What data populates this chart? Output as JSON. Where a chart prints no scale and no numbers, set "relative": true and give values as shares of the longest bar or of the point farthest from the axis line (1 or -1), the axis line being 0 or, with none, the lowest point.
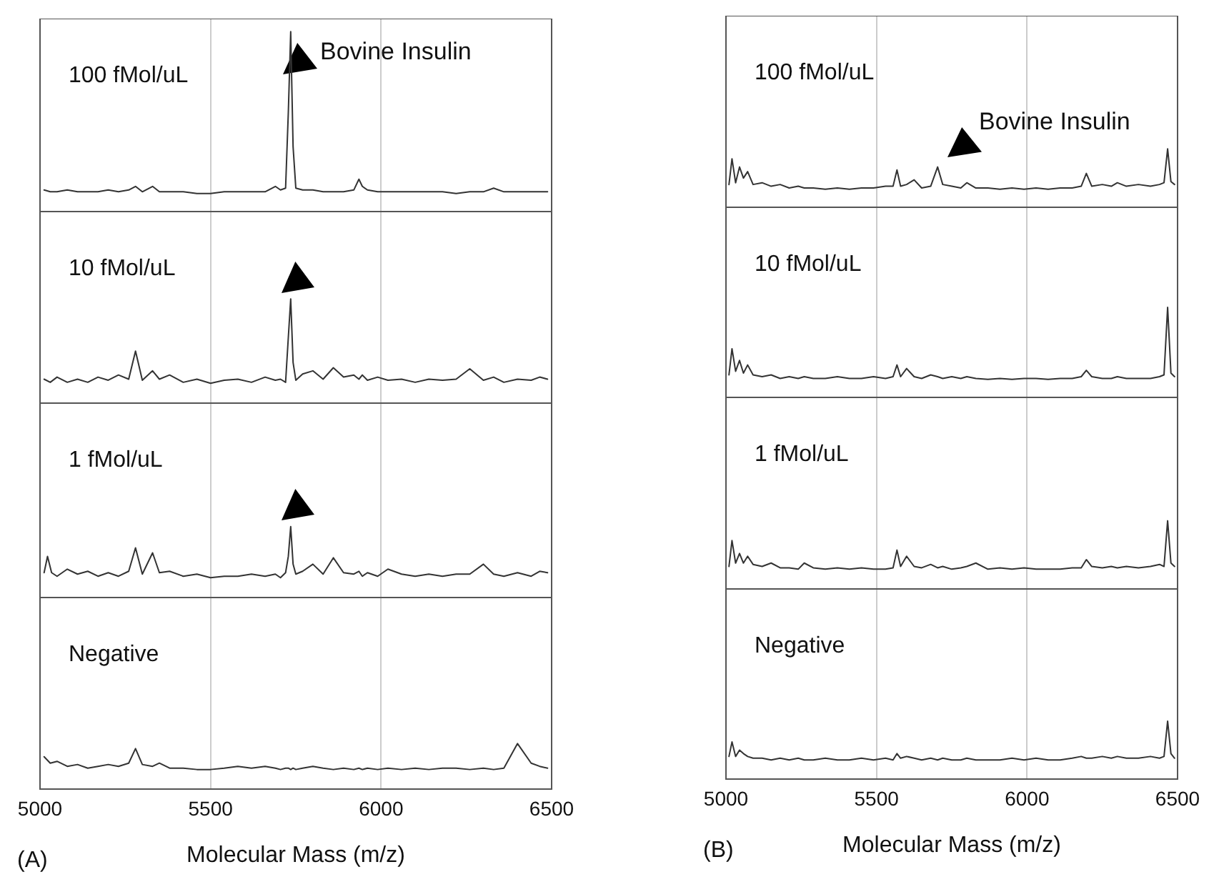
{
  "chart_data": [
    {
      "type": "line",
      "relative": true,
      "color": "#333333",
      "xlim": [
        5000,
        6500
      ],
      "xticks": [
        5000,
        5500,
        6000,
        6500
      ],
      "grid": "x",
      "tick_labels": false,
      "annotations": [
        "100 fMol/uL",
        "Bovine Insulin"
      ],
      "x": [
        5012,
        5030,
        5050,
        5080,
        5110,
        5140,
        5170,
        5200,
        5230,
        5260,
        5280,
        5300,
        5330,
        5350,
        5380,
        5420,
        5460,
        5500,
        5540,
        5580,
        5620,
        5660,
        5690,
        5705,
        5720,
        5728,
        5735,
        5742,
        5750,
        5770,
        5800,
        5830,
        5860,
        5890,
        5920,
        5935,
        5945,
        5960,
        5990,
        6020,
        6060,
        6100,
        6140,
        6180,
        6220,
        6260,
        6300,
        6330,
        6360,
        6400,
        6440,
        6465,
        6488
      ],
      "values": [
        0.12,
        0.11,
        0.11,
        0.12,
        0.11,
        0.11,
        0.11,
        0.12,
        0.11,
        0.12,
        0.14,
        0.11,
        0.14,
        0.11,
        0.11,
        0.11,
        0.1,
        0.1,
        0.11,
        0.11,
        0.11,
        0.11,
        0.14,
        0.12,
        0.13,
        0.55,
        1,
        0.36,
        0.13,
        0.12,
        0.12,
        0.11,
        0.11,
        0.11,
        0.12,
        0.18,
        0.14,
        0.12,
        0.11,
        0.11,
        0.11,
        0.11,
        0.11,
        0.11,
        0.1,
        0.11,
        0.11,
        0.13,
        0.11,
        0.11,
        0.11,
        0.11,
        0.11
      ]
    },
    {
      "type": "line",
      "relative": true,
      "color": "#333333",
      "xlim": [
        5000,
        6500
      ],
      "xticks": [
        5000,
        5500,
        6000,
        6500
      ],
      "grid": "x",
      "tick_labels": false,
      "annotations": [
        "10 fMol/uL"
      ],
      "x": [
        5012,
        5030,
        5050,
        5080,
        5110,
        5140,
        5170,
        5200,
        5230,
        5260,
        5280,
        5300,
        5330,
        5350,
        5380,
        5420,
        5460,
        5500,
        5540,
        5580,
        5620,
        5660,
        5690,
        5705,
        5720,
        5728,
        5735,
        5742,
        5750,
        5770,
        5800,
        5830,
        5860,
        5890,
        5920,
        5935,
        5945,
        5960,
        5990,
        6020,
        6060,
        6100,
        6140,
        6180,
        6220,
        6260,
        6300,
        6330,
        6360,
        6400,
        6440,
        6465,
        6488
      ],
      "values": [
        0.23,
        0.2,
        0.25,
        0.2,
        0.23,
        0.2,
        0.25,
        0.22,
        0.27,
        0.23,
        0.5,
        0.22,
        0.31,
        0.23,
        0.27,
        0.2,
        0.23,
        0.19,
        0.22,
        0.23,
        0.2,
        0.25,
        0.22,
        0.23,
        0.2,
        0.63,
        1,
        0.39,
        0.22,
        0.28,
        0.31,
        0.23,
        0.34,
        0.25,
        0.27,
        0.23,
        0.27,
        0.22,
        0.25,
        0.22,
        0.23,
        0.2,
        0.23,
        0.22,
        0.23,
        0.33,
        0.22,
        0.25,
        0.2,
        0.23,
        0.22,
        0.25,
        0.23
      ]
    },
    {
      "type": "line",
      "relative": true,
      "color": "#333333",
      "xlim": [
        5000,
        6500
      ],
      "xticks": [
        5000,
        5500,
        6000,
        6500
      ],
      "grid": "x",
      "tick_labels": false,
      "annotations": [
        "1 fMol/uL"
      ],
      "x": [
        5012,
        5022,
        5034,
        5050,
        5080,
        5110,
        5140,
        5170,
        5200,
        5230,
        5260,
        5280,
        5300,
        5330,
        5350,
        5380,
        5420,
        5460,
        5500,
        5540,
        5580,
        5620,
        5660,
        5690,
        5705,
        5720,
        5728,
        5735,
        5742,
        5750,
        5770,
        5800,
        5830,
        5860,
        5890,
        5920,
        5935,
        5945,
        5960,
        5990,
        6020,
        6060,
        6100,
        6140,
        6180,
        6220,
        6260,
        6300,
        6330,
        6360,
        6400,
        6440,
        6465,
        6488
      ],
      "values": [
        0.35,
        0.58,
        0.35,
        0.3,
        0.4,
        0.33,
        0.37,
        0.3,
        0.35,
        0.3,
        0.37,
        0.7,
        0.33,
        0.63,
        0.35,
        0.37,
        0.3,
        0.33,
        0.28,
        0.3,
        0.3,
        0.33,
        0.3,
        0.33,
        0.28,
        0.35,
        0.58,
        1,
        0.47,
        0.33,
        0.37,
        0.47,
        0.33,
        0.56,
        0.35,
        0.33,
        0.37,
        0.3,
        0.35,
        0.3,
        0.4,
        0.33,
        0.3,
        0.33,
        0.3,
        0.33,
        0.33,
        0.47,
        0.33,
        0.3,
        0.35,
        0.3,
        0.37,
        0.35
      ]
    },
    {
      "type": "line",
      "relative": true,
      "color": "#333333",
      "xlim": [
        5000,
        6500
      ],
      "xticks": [
        5000,
        5500,
        6000,
        6500
      ],
      "grid": "x",
      "tick_labels": "x",
      "xlabel": "Molecular Mass (m/z)",
      "annotations": [
        "Negative",
        "(A)"
      ],
      "x": [
        5012,
        5030,
        5050,
        5080,
        5110,
        5140,
        5170,
        5200,
        5230,
        5260,
        5280,
        5300,
        5330,
        5350,
        5380,
        5420,
        5460,
        5500,
        5540,
        5580,
        5620,
        5660,
        5690,
        5705,
        5720,
        5728,
        5735,
        5742,
        5750,
        5770,
        5800,
        5830,
        5860,
        5890,
        5920,
        5935,
        5945,
        5960,
        5990,
        6020,
        6060,
        6100,
        6140,
        6180,
        6220,
        6260,
        6300,
        6330,
        6360,
        6400,
        6440,
        6465,
        6488
      ],
      "values": [
        0.71,
        0.57,
        0.61,
        0.5,
        0.54,
        0.46,
        0.5,
        0.54,
        0.5,
        0.57,
        0.89,
        0.54,
        0.5,
        0.57,
        0.46,
        0.46,
        0.43,
        0.43,
        0.46,
        0.5,
        0.46,
        0.5,
        0.46,
        0.43,
        0.46,
        0.46,
        0.43,
        0.46,
        0.43,
        0.46,
        0.5,
        0.46,
        0.43,
        0.46,
        0.43,
        0.46,
        0.43,
        0.46,
        0.43,
        0.46,
        0.43,
        0.46,
        0.43,
        0.46,
        0.46,
        0.43,
        0.46,
        0.43,
        0.46,
        1,
        0.57,
        0.5,
        0.46
      ]
    },
    {
      "type": "line",
      "relative": true,
      "color": "#333333",
      "xlim": [
        5000,
        6500
      ],
      "xticks": [
        5000,
        5500,
        6000,
        6500
      ],
      "grid": "x",
      "tick_labels": false,
      "annotations": [
        "100 fMol/uL",
        "Bovine Insulin"
      ],
      "x": [
        5010,
        5020,
        5032,
        5045,
        5058,
        5072,
        5090,
        5120,
        5150,
        5180,
        5210,
        5240,
        5260,
        5290,
        5330,
        5370,
        5410,
        5450,
        5490,
        5530,
        5555,
        5568,
        5580,
        5600,
        5625,
        5650,
        5680,
        5703,
        5720,
        5750,
        5780,
        5800,
        5830,
        5870,
        5910,
        5950,
        5990,
        6030,
        6070,
        6110,
        6150,
        6180,
        6197,
        6215,
        6250,
        6280,
        6300,
        6330,
        6370,
        6410,
        6440,
        6455,
        6467,
        6478,
        6490
      ],
      "values": [
        0.39,
        0.83,
        0.42,
        0.69,
        0.5,
        0.61,
        0.39,
        0.42,
        0.36,
        0.39,
        0.33,
        0.36,
        0.33,
        0.33,
        0.31,
        0.33,
        0.31,
        0.33,
        0.33,
        0.36,
        0.36,
        0.64,
        0.36,
        0.39,
        0.47,
        0.33,
        0.36,
        0.69,
        0.39,
        0.36,
        0.33,
        0.42,
        0.33,
        0.33,
        0.31,
        0.33,
        0.31,
        0.33,
        0.31,
        0.33,
        0.33,
        0.36,
        0.58,
        0.36,
        0.39,
        0.36,
        0.42,
        0.36,
        0.39,
        0.36,
        0.39,
        0.42,
        1,
        0.44,
        0.39
      ]
    },
    {
      "type": "line",
      "relative": true,
      "color": "#333333",
      "xlim": [
        5000,
        6500
      ],
      "xticks": [
        5000,
        5500,
        6000,
        6500
      ],
      "grid": "x",
      "tick_labels": false,
      "annotations": [
        "10 fMol/uL"
      ],
      "x": [
        5010,
        5020,
        5032,
        5045,
        5058,
        5072,
        5090,
        5120,
        5150,
        5180,
        5210,
        5240,
        5260,
        5290,
        5330,
        5370,
        5410,
        5450,
        5490,
        5530,
        5555,
        5568,
        5580,
        5600,
        5625,
        5650,
        5680,
        5703,
        5720,
        5750,
        5780,
        5800,
        5830,
        5870,
        5910,
        5950,
        5990,
        6030,
        6070,
        6110,
        6150,
        6180,
        6197,
        6215,
        6250,
        6280,
        6300,
        6330,
        6370,
        6410,
        6440,
        6455,
        6467,
        6478,
        6490
      ],
      "values": [
        0.25,
        0.54,
        0.29,
        0.41,
        0.27,
        0.36,
        0.25,
        0.23,
        0.25,
        0.21,
        0.23,
        0.21,
        0.23,
        0.21,
        0.21,
        0.23,
        0.21,
        0.21,
        0.23,
        0.21,
        0.23,
        0.36,
        0.23,
        0.32,
        0.23,
        0.21,
        0.25,
        0.23,
        0.21,
        0.23,
        0.21,
        0.23,
        0.21,
        0.2,
        0.21,
        0.2,
        0.21,
        0.21,
        0.2,
        0.21,
        0.21,
        0.23,
        0.3,
        0.23,
        0.21,
        0.21,
        0.23,
        0.21,
        0.21,
        0.21,
        0.23,
        0.25,
        1,
        0.27,
        0.23
      ]
    },
    {
      "type": "line",
      "relative": true,
      "color": "#333333",
      "xlim": [
        5000,
        6500
      ],
      "xticks": [
        5000,
        5500,
        6000,
        6500
      ],
      "grid": "x",
      "tick_labels": false,
      "annotations": [
        "1 fMol/uL"
      ],
      "x": [
        5010,
        5020,
        5032,
        5045,
        5058,
        5072,
        5090,
        5120,
        5150,
        5180,
        5210,
        5240,
        5260,
        5290,
        5330,
        5370,
        5410,
        5450,
        5490,
        5530,
        5555,
        5568,
        5580,
        5600,
        5625,
        5650,
        5680,
        5703,
        5720,
        5750,
        5780,
        5800,
        5830,
        5870,
        5910,
        5950,
        5990,
        6030,
        6070,
        6110,
        6150,
        6180,
        6197,
        6215,
        6250,
        6280,
        6300,
        6330,
        6370,
        6410,
        6440,
        6455,
        6467,
        6478,
        6490
      ],
      "values": [
        0.33,
        0.71,
        0.38,
        0.52,
        0.38,
        0.48,
        0.36,
        0.33,
        0.38,
        0.31,
        0.31,
        0.29,
        0.38,
        0.31,
        0.29,
        0.31,
        0.29,
        0.31,
        0.29,
        0.29,
        0.31,
        0.57,
        0.33,
        0.48,
        0.33,
        0.31,
        0.36,
        0.31,
        0.33,
        0.29,
        0.31,
        0.33,
        0.38,
        0.29,
        0.31,
        0.29,
        0.31,
        0.29,
        0.29,
        0.29,
        0.31,
        0.31,
        0.43,
        0.33,
        0.31,
        0.33,
        0.31,
        0.33,
        0.31,
        0.33,
        0.36,
        0.33,
        1,
        0.38,
        0.33
      ]
    },
    {
      "type": "line",
      "relative": true,
      "color": "#333333",
      "xlim": [
        5000,
        6500
      ],
      "xticks": [
        5000,
        5500,
        6000,
        6500
      ],
      "grid": "x",
      "tick_labels": "x",
      "xlabel": "Molecular Mass (m/z)",
      "annotations": [
        "Negative",
        "(B)"
      ],
      "x": [
        5010,
        5020,
        5032,
        5045,
        5058,
        5072,
        5090,
        5120,
        5150,
        5180,
        5210,
        5240,
        5260,
        5290,
        5330,
        5370,
        5410,
        5450,
        5490,
        5530,
        5555,
        5568,
        5580,
        5600,
        5625,
        5650,
        5680,
        5703,
        5720,
        5750,
        5780,
        5800,
        5830,
        5870,
        5910,
        5950,
        5990,
        6030,
        6070,
        6110,
        6150,
        6180,
        6197,
        6215,
        6250,
        6280,
        6300,
        6330,
        6370,
        6410,
        6440,
        6455,
        6467,
        6478,
        6490
      ],
      "values": [
        0.39,
        0.64,
        0.39,
        0.5,
        0.44,
        0.39,
        0.36,
        0.36,
        0.33,
        0.36,
        0.33,
        0.36,
        0.33,
        0.33,
        0.36,
        0.33,
        0.33,
        0.36,
        0.33,
        0.36,
        0.33,
        0.44,
        0.36,
        0.39,
        0.36,
        0.33,
        0.36,
        0.33,
        0.36,
        0.33,
        0.33,
        0.36,
        0.33,
        0.33,
        0.33,
        0.36,
        0.33,
        0.36,
        0.33,
        0.33,
        0.36,
        0.39,
        0.36,
        0.36,
        0.39,
        0.36,
        0.39,
        0.36,
        0.36,
        0.39,
        0.36,
        0.39,
        1,
        0.44,
        0.36
      ]
    }
  ]
}
